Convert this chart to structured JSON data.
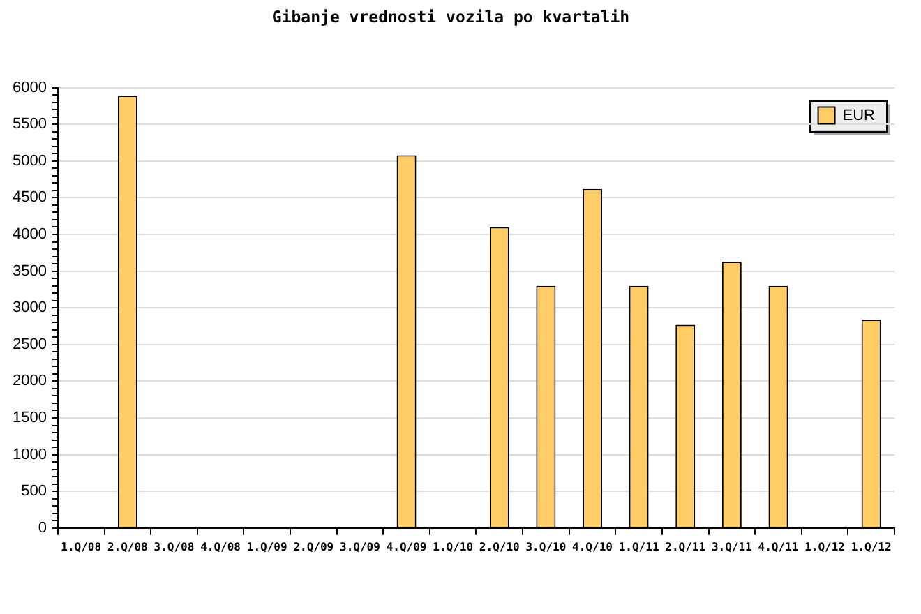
{
  "chart_data": {
    "type": "bar",
    "title": "Gibanje vrednosti vozila po kvartalih",
    "categories": [
      "1.Q/08",
      "2.Q/08",
      "3.Q/08",
      "4.Q/08",
      "1.Q/09",
      "2.Q/09",
      "3.Q/09",
      "4.Q/09",
      "1.Q/10",
      "2.Q/10",
      "3.Q/10",
      "4.Q/10",
      "1.Q/11",
      "2.Q/11",
      "3.Q/11",
      "4.Q/11",
      "1.Q/12",
      "1.Q/12"
    ],
    "series": [
      {
        "name": "EUR",
        "color": "#ffcc66",
        "values": [
          null,
          5890,
          null,
          null,
          null,
          null,
          null,
          5080,
          null,
          4100,
          3300,
          4620,
          3300,
          2770,
          3630,
          3300,
          null,
          2840
        ]
      }
    ],
    "ylim": [
      0,
      6000
    ],
    "yticks": [
      0,
      {
        "value": 100,
        "label": null
      },
      {
        "value": 200,
        "label": null
      },
      {
        "value": 300,
        "label": null
      },
      {
        "value": 400,
        "label": null
      },
      500,
      {
        "value": 600,
        "label": null
      },
      {
        "value": 700,
        "label": null
      },
      {
        "value": 800,
        "label": null
      },
      {
        "value": 900,
        "label": null
      },
      1000,
      {
        "value": 1100,
        "label": null
      },
      {
        "value": 1200,
        "label": null
      },
      {
        "value": 1300,
        "label": null
      },
      {
        "value": 1400,
        "label": null
      },
      1500,
      {
        "value": 1600,
        "label": null
      },
      {
        "value": 1700,
        "label": null
      },
      {
        "value": 1800,
        "label": null
      },
      {
        "value": 1900,
        "label": null
      },
      2000,
      {
        "value": 2100,
        "label": null
      },
      {
        "value": 2200,
        "label": null
      },
      {
        "value": 2300,
        "label": null
      },
      {
        "value": 2400,
        "label": null
      },
      2500,
      {
        "value": 2600,
        "label": null
      },
      {
        "value": 2700,
        "label": null
      },
      {
        "value": 2800,
        "label": null
      },
      {
        "value": 2900,
        "label": null
      },
      3000,
      {
        "value": 3100,
        "label": null
      },
      {
        "value": 3200,
        "label": null
      },
      {
        "value": 3300,
        "label": null
      },
      {
        "value": 3400,
        "label": null
      },
      3500,
      {
        "value": 3600,
        "label": null
      },
      {
        "value": 3700,
        "label": null
      },
      {
        "value": 3800,
        "label": null
      },
      {
        "value": 3900,
        "label": null
      },
      4000,
      {
        "value": 4100,
        "label": null
      },
      {
        "value": 4200,
        "label": null
      },
      {
        "value": 4300,
        "label": null
      },
      {
        "value": 4400,
        "label": null
      },
      4500,
      {
        "value": 4600,
        "label": null
      },
      {
        "value": 4700,
        "label": null
      },
      {
        "value": 4800,
        "label": null
      },
      {
        "value": 4900,
        "label": null
      },
      5000,
      {
        "value": 5100,
        "label": null
      },
      {
        "value": 5200,
        "label": null
      },
      {
        "value": 5300,
        "label": null
      },
      {
        "value": 5400,
        "label": null
      },
      5500,
      {
        "value": 5600,
        "label": null
      },
      {
        "value": 5700,
        "label": null
      },
      {
        "value": 5800,
        "label": null
      },
      {
        "value": 5900,
        "label": null
      },
      6000
    ],
    "grid": "y",
    "legend": "top right"
  }
}
